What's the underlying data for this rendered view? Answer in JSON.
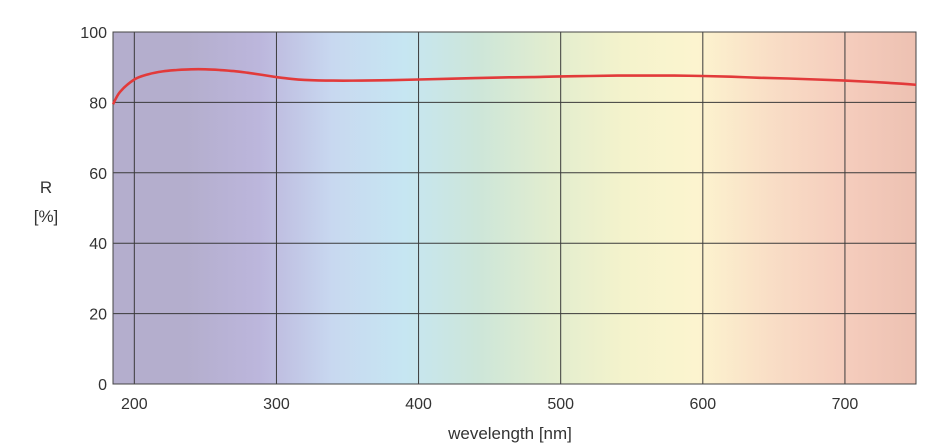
{
  "chart_data": {
    "type": "line",
    "xlabel": "wevelength [nm]",
    "ylabel_line1": "R",
    "ylabel_line2": "[%]",
    "xlim": [
      185,
      750
    ],
    "ylim": [
      0,
      100
    ],
    "x_ticks": [
      200,
      300,
      400,
      500,
      600,
      700
    ],
    "y_ticks": [
      0,
      20,
      40,
      60,
      80,
      100
    ],
    "grid": true,
    "series": [
      {
        "color": "#e23a3a",
        "x": [
          185,
          190,
          200,
          210,
          220,
          230,
          240,
          250,
          260,
          270,
          280,
          290,
          300,
          310,
          320,
          340,
          360,
          380,
          400,
          420,
          440,
          460,
          480,
          500,
          520,
          540,
          560,
          580,
          600,
          620,
          640,
          660,
          680,
          700,
          720,
          740,
          750
        ],
        "y": [
          79.5,
          83,
          86.5,
          88,
          88.8,
          89.2,
          89.4,
          89.4,
          89.2,
          88.9,
          88.4,
          87.8,
          87.2,
          86.7,
          86.4,
          86.2,
          86.2,
          86.3,
          86.5,
          86.7,
          86.9,
          87.1,
          87.2,
          87.4,
          87.5,
          87.6,
          87.6,
          87.6,
          87.5,
          87.3,
          87,
          86.8,
          86.5,
          86.2,
          85.8,
          85.3,
          85
        ]
      }
    ],
    "background_gradient": [
      "#b4aecd",
      "#b4aecd",
      "#bcb6dc",
      "#c8d8f0",
      "#c6e6f2",
      "#cde6d9",
      "#e2edcf",
      "#f4f3cc",
      "#fcf4cf",
      "#f9dec6",
      "#f5cdbd",
      "#edc1b2"
    ]
  }
}
